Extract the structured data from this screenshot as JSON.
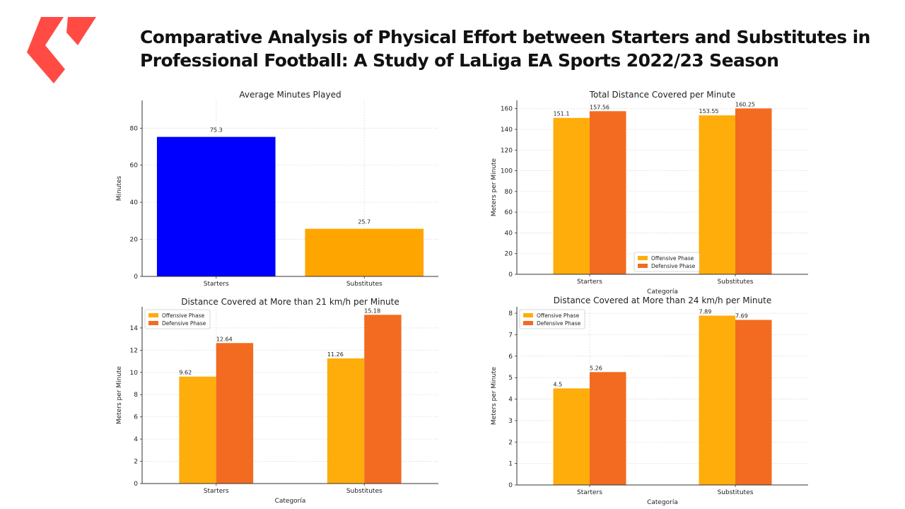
{
  "page": {
    "title": "Comparative Analysis of Physical Effort between Starters and Substitutes in Professional Football: A Study of LaLiga EA Sports 2022/23 Season"
  },
  "logo": {
    "icon": "laliga-logo-icon",
    "color": "#ff4b44"
  },
  "colors": {
    "blue": "#0000ff",
    "orange": "#ffa500",
    "offensive": "#ffad0a",
    "defensive": "#f26b21"
  },
  "chart_data": [
    {
      "id": "c1",
      "type": "bar",
      "title": "Average Minutes Played",
      "xlabel": "",
      "ylabel": "Minutes",
      "categories": [
        "Starters",
        "Substitutes"
      ],
      "series": [
        {
          "values": [
            75.3,
            25.7
          ],
          "colors": [
            "#0000ff",
            "#ffa500"
          ]
        }
      ],
      "ylim": [
        0,
        95
      ],
      "yticks": [
        0,
        20,
        40,
        60,
        80
      ],
      "grid": true,
      "legend": null
    },
    {
      "id": "c2",
      "type": "bar",
      "title": "Total Distance Covered per Minute",
      "xlabel": "Categoría",
      "ylabel": "Meters per Minute",
      "categories": [
        "Starters",
        "Substitutes"
      ],
      "series": [
        {
          "name": "Offensive Phase",
          "values": [
            151.1,
            153.55
          ],
          "color": "#ffad0a"
        },
        {
          "name": "Defensive Phase",
          "values": [
            157.56,
            160.25
          ],
          "color": "#f26b21"
        }
      ],
      "ylim": [
        0,
        168
      ],
      "yticks": [
        0,
        20,
        40,
        60,
        80,
        100,
        120,
        140,
        160
      ],
      "grid": true,
      "legend": "bottom-center"
    },
    {
      "id": "c3",
      "type": "bar",
      "title": "Distance Covered at More than 21 km/h per Minute",
      "xlabel": "Categoría",
      "ylabel": "Meters per Minute",
      "categories": [
        "Starters",
        "Substitutes"
      ],
      "series": [
        {
          "name": "Offensive Phase",
          "values": [
            9.62,
            11.26
          ],
          "color": "#ffad0a"
        },
        {
          "name": "Defensive Phase",
          "values": [
            12.64,
            15.18
          ],
          "color": "#f26b21"
        }
      ],
      "ylim": [
        0,
        15.9
      ],
      "yticks": [
        0,
        2,
        4,
        6,
        8,
        10,
        12,
        14
      ],
      "grid": true,
      "legend": "top-left"
    },
    {
      "id": "c4",
      "type": "bar",
      "title": "Distance Covered at More than 24 km/h per Minute",
      "xlabel": "Categoría",
      "ylabel": "Meters per Minute",
      "categories": [
        "Starters",
        "Substitutes"
      ],
      "series": [
        {
          "name": "Offensive Phase",
          "values": [
            4.5,
            7.89
          ],
          "color": "#ffad0a"
        },
        {
          "name": "Defensive Phase",
          "values": [
            5.26,
            7.69
          ],
          "color": "#f26b21"
        }
      ],
      "ylim": [
        0,
        8.3
      ],
      "yticks": [
        0,
        1,
        2,
        3,
        4,
        5,
        6,
        7,
        8
      ],
      "grid": true,
      "legend": "top-left"
    }
  ]
}
